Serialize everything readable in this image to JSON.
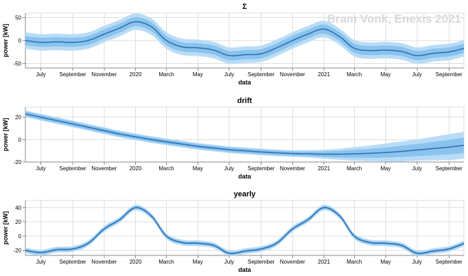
{
  "watermark": "Bram Vonk, Enexis 2021",
  "colors": {
    "line": "#2f6fb0",
    "band_outer": "#b9dcf6",
    "band_inner": "#89c3ee"
  },
  "chart_data": [
    {
      "type": "area",
      "title": "Σ",
      "xlabel": "data",
      "ylabel": "power [kW]",
      "ylim": [
        -60,
        60
      ],
      "yticks": [
        -50,
        0,
        50
      ],
      "grid": true,
      "x_labels": [
        "July",
        "September",
        "November",
        "2020",
        "March",
        "May",
        "July",
        "September",
        "November",
        "2021",
        "March",
        "May",
        "July",
        "September"
      ],
      "x": [
        "2019-06",
        "2019-07",
        "2019-08",
        "2019-09",
        "2019-10",
        "2019-11",
        "2019-12",
        "2020-01",
        "2020-02",
        "2020-03",
        "2020-04",
        "2020-05",
        "2020-06",
        "2020-07",
        "2020-08",
        "2020-09",
        "2020-10",
        "2020-11",
        "2020-12",
        "2021-01",
        "2021-02",
        "2021-03",
        "2021-04",
        "2021-05",
        "2021-06",
        "2021-07",
        "2021-08",
        "2021-09",
        "2021-10"
      ],
      "series": [
        {
          "values": [
            0,
            -4,
            -3,
            -4,
            0,
            14,
            27,
            41,
            30,
            0,
            -14,
            -16,
            -21,
            -33,
            -31,
            -29,
            -16,
            0,
            14,
            25,
            8,
            -17,
            -22,
            -21,
            -24,
            -33,
            -28,
            -25,
            -17
          ]
        }
      ],
      "band_inner": 10,
      "band_outer": 18
    },
    {
      "type": "area",
      "title": "drift",
      "xlabel": "data",
      "ylabel": "power [kW]",
      "ylim": [
        -20,
        29
      ],
      "yticks": [
        -20,
        0,
        20
      ],
      "grid": true,
      "x_labels": [
        "July",
        "September",
        "November",
        "2020",
        "March",
        "May",
        "July",
        "September",
        "November",
        "2021",
        "March",
        "May",
        "July",
        "September"
      ],
      "x": [
        "2019-06",
        "2019-07",
        "2019-08",
        "2019-09",
        "2019-10",
        "2019-11",
        "2019-12",
        "2020-01",
        "2020-02",
        "2020-03",
        "2020-04",
        "2020-05",
        "2020-06",
        "2020-07",
        "2020-08",
        "2020-09",
        "2020-10",
        "2020-11",
        "2020-12",
        "2021-01",
        "2021-02",
        "2021-03",
        "2021-04",
        "2021-05",
        "2021-06",
        "2021-07",
        "2021-08",
        "2021-09",
        "2021-10"
      ],
      "series": [
        {
          "values": [
            23,
            20,
            17,
            14,
            11,
            8,
            5,
            2.5,
            0,
            -2,
            -4,
            -6,
            -7.5,
            -9,
            -10,
            -11,
            -11.8,
            -12.4,
            -12.7,
            -13,
            -13,
            -12.7,
            -12.2,
            -11.5,
            -10.5,
            -9.3,
            -8,
            -6.7,
            -5
          ]
        }
      ],
      "band_inner": [
        2,
        2,
        2,
        2,
        2,
        2,
        2,
        2,
        2,
        2,
        2,
        2,
        2,
        2,
        2,
        2,
        2,
        2,
        2,
        2.5,
        3,
        3.5,
        4,
        4.5,
        5,
        5.5,
        6,
        6.5,
        7
      ],
      "band_outer": [
        3,
        3,
        3,
        3,
        3,
        3,
        3,
        3,
        3,
        3,
        3,
        3,
        3,
        3,
        3,
        3,
        3,
        3,
        3.3,
        4,
        5,
        6,
        7,
        8,
        9,
        9.5,
        10.5,
        11.5,
        12
      ]
    },
    {
      "type": "area",
      "title": "yearly",
      "xlabel": "data",
      "ylabel": "power [kW]",
      "ylim": [
        -27,
        50
      ],
      "yticks": [
        -20,
        0,
        20,
        40
      ],
      "grid": true,
      "x_labels": [
        "July",
        "September",
        "November",
        "2020",
        "March",
        "May",
        "July",
        "September",
        "November",
        "2021",
        "March",
        "May",
        "July",
        "September"
      ],
      "x": [
        "2019-06",
        "2019-07",
        "2019-08",
        "2019-09",
        "2019-10",
        "2019-11",
        "2019-12",
        "2020-01",
        "2020-02",
        "2020-03",
        "2020-04",
        "2020-05",
        "2020-06",
        "2020-07",
        "2020-08",
        "2020-09",
        "2020-10",
        "2020-11",
        "2020-12",
        "2021-01",
        "2021-02",
        "2021-03",
        "2021-04",
        "2021-05",
        "2021-06",
        "2021-07",
        "2021-08",
        "2021-09",
        "2021-10"
      ],
      "series": [
        {
          "values": [
            -20,
            -23,
            -19,
            -18,
            -10,
            10,
            23,
            40,
            28,
            0,
            -9,
            -10,
            -13,
            -24,
            -21,
            -18,
            -10,
            10,
            23,
            40,
            28,
            0,
            -9,
            -10,
            -13,
            -24,
            -21,
            -18,
            -10
          ]
        }
      ],
      "band_inner": 2,
      "band_outer": 4
    }
  ]
}
